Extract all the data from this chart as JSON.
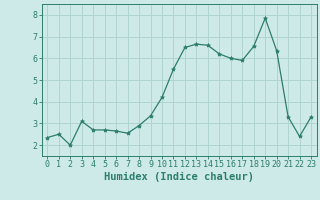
{
  "x": [
    0,
    1,
    2,
    3,
    4,
    5,
    6,
    7,
    8,
    9,
    10,
    11,
    12,
    13,
    14,
    15,
    16,
    17,
    18,
    19,
    20,
    21,
    22,
    23
  ],
  "y": [
    2.35,
    2.5,
    2.0,
    3.1,
    2.7,
    2.7,
    2.65,
    2.55,
    2.9,
    3.35,
    4.2,
    5.5,
    6.5,
    6.65,
    6.6,
    6.2,
    6.0,
    5.9,
    6.55,
    7.85,
    6.35,
    3.3,
    2.4,
    3.3
  ],
  "line_color": "#2d7d6e",
  "marker": "*",
  "marker_size": 3,
  "bg_color": "#ceeae8",
  "grid_color": "#b0d4d2",
  "xlabel": "Humidex (Indice chaleur)",
  "ylim": [
    1.5,
    8.5
  ],
  "xlim": [
    -0.5,
    23.5
  ],
  "yticks": [
    2,
    3,
    4,
    5,
    6,
    7,
    8
  ],
  "xticks": [
    0,
    1,
    2,
    3,
    4,
    5,
    6,
    7,
    8,
    9,
    10,
    11,
    12,
    13,
    14,
    15,
    16,
    17,
    18,
    19,
    20,
    21,
    22,
    23
  ],
  "tick_color": "#2d7d6e",
  "label_fontsize": 6,
  "xlabel_fontsize": 7.5
}
